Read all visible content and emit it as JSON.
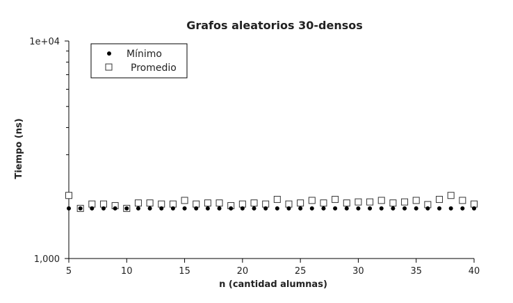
{
  "chart_data": {
    "type": "scatter",
    "title": "Grafos aleatorios 30-densos",
    "xlabel": "n (cantidad alumnas)",
    "ylabel": "Tiempo (ns)",
    "xlim": [
      5,
      40
    ],
    "ylim": [
      1000,
      10000
    ],
    "yscale": "log",
    "x_ticks": [
      5,
      10,
      15,
      20,
      25,
      30,
      35,
      40
    ],
    "y_ticks": [
      {
        "value": 1000,
        "label": "1,000"
      },
      {
        "value": 10000,
        "label": "1e+04"
      }
    ],
    "y_minor_ticks": [
      2000,
      3000,
      4000,
      5000,
      6000,
      7000,
      8000,
      9000
    ],
    "legend_position": "top-left",
    "grid": false,
    "x": [
      5,
      6,
      7,
      8,
      9,
      10,
      11,
      12,
      13,
      14,
      15,
      16,
      17,
      18,
      19,
      20,
      21,
      22,
      23,
      24,
      25,
      26,
      27,
      28,
      29,
      30,
      31,
      32,
      33,
      34,
      35,
      36,
      37,
      38,
      39,
      40
    ],
    "series": [
      {
        "name": "Mínimo",
        "marker": "filled-circle",
        "color": "#000000",
        "values": [
          1700,
          1700,
          1700,
          1700,
          1700,
          1700,
          1700,
          1700,
          1700,
          1700,
          1700,
          1700,
          1700,
          1700,
          1700,
          1700,
          1700,
          1700,
          1700,
          1700,
          1700,
          1700,
          1700,
          1700,
          1700,
          1700,
          1700,
          1700,
          1700,
          1700,
          1700,
          1700,
          1700,
          1700,
          1700,
          1700
        ]
      },
      {
        "name": "Promedio",
        "marker": "open-square",
        "color": "#333333",
        "values": [
          1950,
          1700,
          1780,
          1780,
          1750,
          1700,
          1800,
          1800,
          1780,
          1780,
          1850,
          1780,
          1800,
          1800,
          1750,
          1780,
          1800,
          1780,
          1870,
          1780,
          1800,
          1850,
          1800,
          1870,
          1800,
          1820,
          1820,
          1850,
          1800,
          1820,
          1850,
          1770,
          1870,
          1950,
          1850,
          1780
        ]
      }
    ]
  }
}
